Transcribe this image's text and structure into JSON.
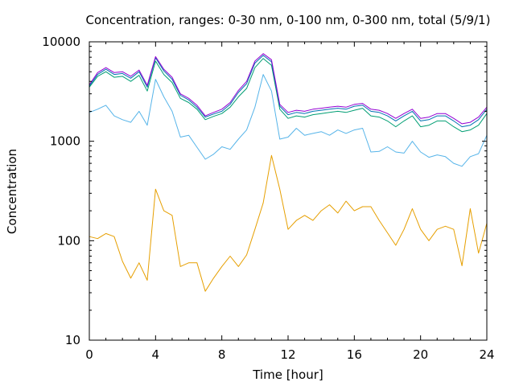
{
  "chart_data": {
    "type": "line",
    "title": "Concentration, ranges: 0-30 nm, 0-100 nm, 0-300 nm, total (5/9/1)",
    "xlabel": "Time [hour]",
    "ylabel": "Concentration",
    "xlim": [
      0,
      24
    ],
    "ylim": [
      10,
      10000
    ],
    "yscale": "log",
    "grid": false,
    "legend": "none",
    "x_ticks": [
      "0",
      "4",
      "8",
      "12",
      "16",
      "20",
      "24"
    ],
    "y_ticks": [
      "10",
      "100",
      "1000",
      "10000"
    ],
    "x": [
      0,
      0.5,
      1,
      1.5,
      2,
      2.5,
      3,
      3.5,
      4,
      4.5,
      5,
      5.5,
      6,
      6.5,
      7,
      7.5,
      8,
      8.5,
      9,
      9.5,
      10,
      10.5,
      11,
      11.5,
      12,
      12.5,
      13,
      13.5,
      14,
      14.5,
      15,
      15.5,
      16,
      16.5,
      17,
      17.5,
      18,
      18.5,
      19,
      19.5,
      20,
      20.5,
      21,
      21.5,
      22,
      22.5,
      23,
      23.5,
      24
    ],
    "series": [
      {
        "color": "#e69f00",
        "values": [
          110,
          105,
          118,
          110,
          62,
          42,
          60,
          40,
          330,
          200,
          180,
          55,
          60,
          60,
          31,
          42,
          55,
          70,
          55,
          72,
          130,
          240,
          720,
          330,
          130,
          160,
          180,
          160,
          200,
          230,
          190,
          250,
          200,
          220,
          220,
          160,
          120,
          90,
          130,
          210,
          130,
          100,
          130,
          140,
          130,
          56,
          210,
          75,
          150
        ]
      },
      {
        "color": "#56b4e9",
        "values": [
          1950,
          2100,
          2300,
          1800,
          1650,
          1550,
          2000,
          1450,
          4200,
          2800,
          2000,
          1100,
          1150,
          870,
          660,
          740,
          880,
          830,
          1050,
          1300,
          2200,
          4700,
          3200,
          1050,
          1100,
          1350,
          1150,
          1200,
          1250,
          1150,
          1300,
          1200,
          1300,
          1350,
          780,
          790,
          880,
          780,
          760,
          1000,
          780,
          690,
          730,
          700,
          600,
          560,
          700,
          750,
          1150
        ]
      },
      {
        "color": "#009e73",
        "values": [
          3500,
          4500,
          5000,
          4400,
          4500,
          4000,
          4600,
          3200,
          6400,
          4700,
          3900,
          2700,
          2450,
          2100,
          1650,
          1780,
          1900,
          2200,
          2800,
          3400,
          5500,
          6800,
          5800,
          2100,
          1700,
          1800,
          1750,
          1850,
          1900,
          1950,
          2000,
          1950,
          2050,
          2150,
          1800,
          1750,
          1600,
          1400,
          1600,
          1800,
          1400,
          1450,
          1600,
          1600,
          1400,
          1250,
          1300,
          1450,
          1900
        ]
      },
      {
        "color": "#0072b2",
        "values": [
          3600,
          4700,
          5300,
          4700,
          4800,
          4300,
          5000,
          3500,
          6900,
          5100,
          4200,
          2900,
          2600,
          2200,
          1750,
          1880,
          2000,
          2350,
          3100,
          3800,
          6100,
          7300,
          6300,
          2250,
          1850,
          1950,
          1900,
          2000,
          2050,
          2100,
          2150,
          2100,
          2250,
          2300,
          2000,
          1950,
          1800,
          1600,
          1800,
          2000,
          1600,
          1650,
          1800,
          1800,
          1600,
          1400,
          1450,
          1650,
          2100
        ]
      },
      {
        "color": "#9400d3",
        "values": [
          3700,
          4900,
          5500,
          4900,
          5000,
          4500,
          5200,
          3650,
          7100,
          5300,
          4400,
          3000,
          2700,
          2300,
          1800,
          1950,
          2100,
          2450,
          3250,
          4000,
          6400,
          7600,
          6600,
          2350,
          1950,
          2050,
          2000,
          2100,
          2150,
          2200,
          2250,
          2200,
          2350,
          2400,
          2100,
          2050,
          1900,
          1700,
          1900,
          2100,
          1700,
          1750,
          1900,
          1900,
          1700,
          1500,
          1550,
          1750,
          2200
        ]
      }
    ]
  }
}
